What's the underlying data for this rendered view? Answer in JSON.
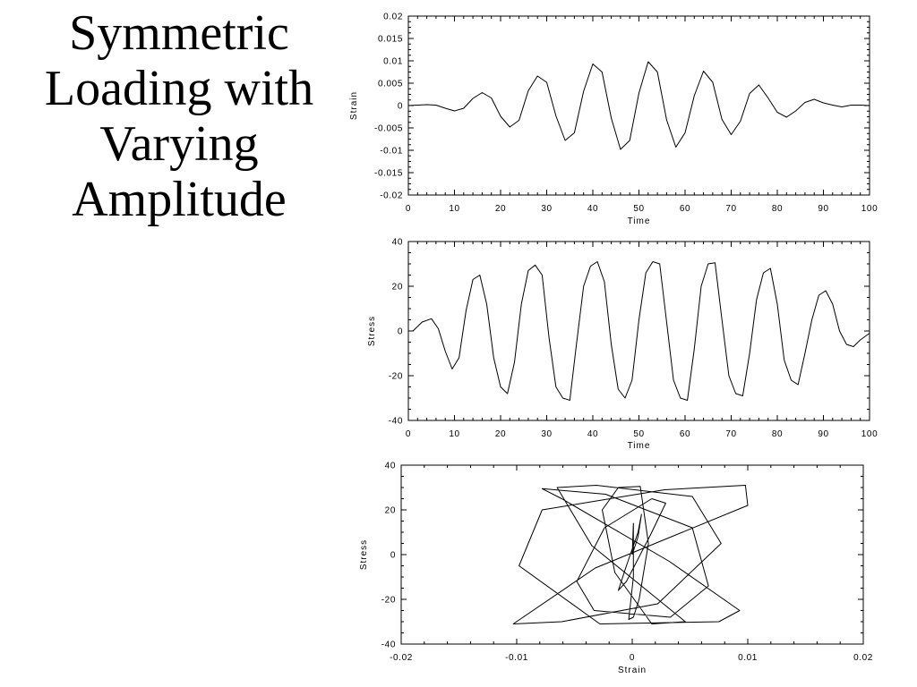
{
  "slide": {
    "title_lines": [
      "Symmetric",
      "Loading with",
      "Varying",
      "Amplitude"
    ]
  },
  "chart_data": [
    {
      "type": "line",
      "id": "strain_time",
      "xlabel": "Time",
      "ylabel": "Strain",
      "xlim": [
        0,
        100
      ],
      "ylim": [
        -0.02,
        0.02
      ],
      "xticks": [
        0,
        10,
        20,
        30,
        40,
        50,
        60,
        70,
        80,
        90,
        100
      ],
      "yticks": [
        -0.02,
        -0.015,
        -0.01,
        -0.005,
        0,
        0.005,
        0.01,
        0.015,
        0.02
      ],
      "xtick_labels": [
        "0",
        "10",
        "20",
        "30",
        "40",
        "50",
        "60",
        "70",
        "80",
        "90",
        "100"
      ],
      "ytick_labels": [
        "-0.02",
        "-0.015",
        "-0.01",
        "-0.005",
        "0",
        "0.005",
        "0.01",
        "0.015",
        "0.02"
      ],
      "series": [
        {
          "x": [
            0,
            2,
            4,
            6,
            8,
            10,
            12,
            14,
            16,
            18,
            20,
            22,
            24,
            26,
            28,
            30,
            32,
            34,
            36,
            38,
            40,
            42,
            44,
            46,
            48,
            50,
            52,
            54,
            56,
            58,
            60,
            62,
            64,
            66,
            68,
            70,
            72,
            74,
            76,
            78,
            80,
            82,
            84,
            86,
            88,
            90,
            92,
            94,
            96,
            98,
            100
          ],
          "y": [
            0,
            0.0001,
            0.0002,
            0.0001,
            -0.0006,
            -0.0012,
            -0.0006,
            0.0016,
            0.0029,
            0.0017,
            -0.0024,
            -0.0048,
            -0.0033,
            0.0033,
            0.0066,
            0.0052,
            -0.0023,
            -0.0078,
            -0.0061,
            0.0032,
            0.0093,
            0.0075,
            -0.0028,
            -0.0098,
            -0.0078,
            0.0028,
            0.0098,
            0.0075,
            -0.0032,
            -0.0093,
            -0.0061,
            0.0022,
            0.0077,
            0.0052,
            -0.0031,
            -0.0065,
            -0.0035,
            0.0027,
            0.0046,
            0.0017,
            -0.0015,
            -0.0026,
            -0.0012,
            0.0007,
            0.0014,
            0.0006,
            0.0001,
            -0.0003,
            0.0001,
            0.0001,
            0
          ]
        }
      ]
    },
    {
      "type": "line",
      "id": "stress_time",
      "xlabel": "Time",
      "ylabel": "Stress",
      "xlim": [
        0,
        100
      ],
      "ylim": [
        -40,
        40
      ],
      "xticks": [
        0,
        10,
        20,
        30,
        40,
        50,
        60,
        70,
        80,
        90,
        100
      ],
      "yticks": [
        -40,
        -20,
        0,
        20,
        40
      ],
      "xtick_labels": [
        "0",
        "10",
        "20",
        "30",
        "40",
        "50",
        "60",
        "70",
        "80",
        "90",
        "100"
      ],
      "ytick_labels": [
        "-40",
        "-20",
        "0",
        "20",
        "40"
      ],
      "series": [
        {
          "x": [
            1,
            3,
            5,
            6.5,
            8,
            9.5,
            11,
            12.5,
            14,
            15.5,
            17,
            18.5,
            20,
            21.5,
            23,
            24.5,
            26,
            27.5,
            29,
            30.5,
            32,
            33.5,
            35,
            36.5,
            38,
            39.5,
            41,
            42.5,
            44,
            45.5,
            47,
            48.5,
            50,
            51.5,
            53,
            54.5,
            56,
            57.5,
            59,
            60.5,
            62,
            63.5,
            65,
            66.5,
            68,
            69.5,
            71,
            72.5,
            74,
            75.5,
            77,
            78.5,
            80,
            81.5,
            83,
            84.5,
            86,
            87.5,
            89,
            90.5,
            92,
            93.5,
            95,
            96.5,
            98,
            100
          ],
          "y": [
            0,
            4,
            5.5,
            1,
            -9,
            -17,
            -12,
            9,
            23,
            25,
            12,
            -12,
            -25,
            -28,
            -14,
            12,
            27,
            29.5,
            25,
            -3,
            -25,
            -30,
            -31,
            -5,
            20,
            29,
            31,
            22,
            -6,
            -26,
            -30,
            -22,
            5,
            26,
            31,
            30,
            4,
            -22,
            -30,
            -31,
            -8,
            20,
            30,
            30.5,
            5,
            -20,
            -28,
            -29,
            -10,
            14,
            26,
            28,
            12,
            -13,
            -22,
            -24,
            -10,
            5,
            16,
            18,
            12,
            0,
            -6,
            -7,
            -4,
            -1
          ]
        }
      ]
    },
    {
      "type": "line",
      "id": "stress_strain",
      "xlabel": "Strain",
      "ylabel": "Stress",
      "xlim": [
        -0.02,
        0.02
      ],
      "ylim": [
        -40,
        40
      ],
      "xticks": [
        -0.02,
        -0.01,
        0,
        0.01,
        0.02
      ],
      "yticks": [
        -40,
        -20,
        0,
        20,
        40
      ],
      "xtick_labels": [
        "-0.02",
        "-0.01",
        "0",
        "0.01",
        "0.02"
      ],
      "ytick_labels": [
        "-40",
        "-20",
        "0",
        "20",
        "40"
      ],
      "series": [
        {
          "x": [
            0,
            0.0005,
            0.0008,
            0.0005,
            -0.0005,
            -0.0012,
            -0.0005,
            0.0016,
            0.0029,
            0.0017,
            -0.0024,
            -0.0048,
            -0.0033,
            0.0033,
            0.0066,
            0.0052,
            -0.0023,
            -0.0078,
            -0.0061,
            0.0032,
            0.0093,
            0.0075,
            -0.0028,
            -0.0098,
            -0.0078,
            0.0028,
            0.0098,
            0.01,
            -0.0032,
            -0.0103,
            -0.0061,
            0.0022,
            0.0077,
            0.0052,
            -0.0031,
            -0.0065,
            -0.0035,
            0.0027,
            0.0046,
            0.0017,
            -0.0015,
            -0.0026,
            -0.0012,
            0.0007,
            0.0014,
            0.0006,
            0.0001,
            -0.0003,
            0.0001,
            0.0001,
            0
          ],
          "y": [
            0,
            8,
            18,
            10,
            -5,
            -16,
            -12,
            9,
            23,
            25,
            12,
            -12,
            -25,
            -28,
            -14,
            12,
            27,
            29.5,
            25,
            -3,
            -25,
            -30,
            -31,
            -5,
            20,
            29,
            31,
            22,
            -6,
            -31,
            -30,
            -22,
            5,
            26,
            31,
            30,
            4,
            -22,
            -30,
            -31,
            -8,
            20,
            30,
            30.5,
            5,
            -20,
            -28,
            -29,
            -10,
            14,
            0
          ]
        }
      ]
    }
  ]
}
